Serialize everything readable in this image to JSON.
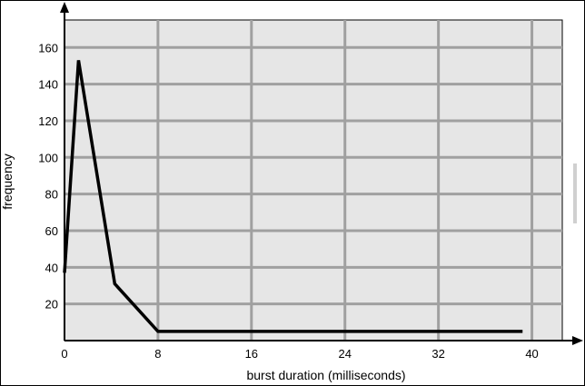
{
  "chart_data": {
    "type": "line",
    "title": "",
    "xlabel": "burst duration (milliseconds)",
    "ylabel": "frequency",
    "x_ticks": [
      0,
      8,
      16,
      24,
      32,
      40
    ],
    "y_ticks": [
      20,
      40,
      60,
      80,
      100,
      120,
      140,
      160
    ],
    "xlim": [
      0,
      42.6
    ],
    "ylim": [
      0,
      175
    ],
    "grid": true,
    "colors": {
      "plot_background": "#e6e6e6",
      "grid": "#a0a0a0",
      "line": "#000000"
    },
    "series": [
      {
        "x": [
          0,
          1.2,
          4.3,
          8.0,
          39.2
        ],
        "values": [
          37,
          153,
          31,
          5,
          5
        ]
      }
    ]
  }
}
